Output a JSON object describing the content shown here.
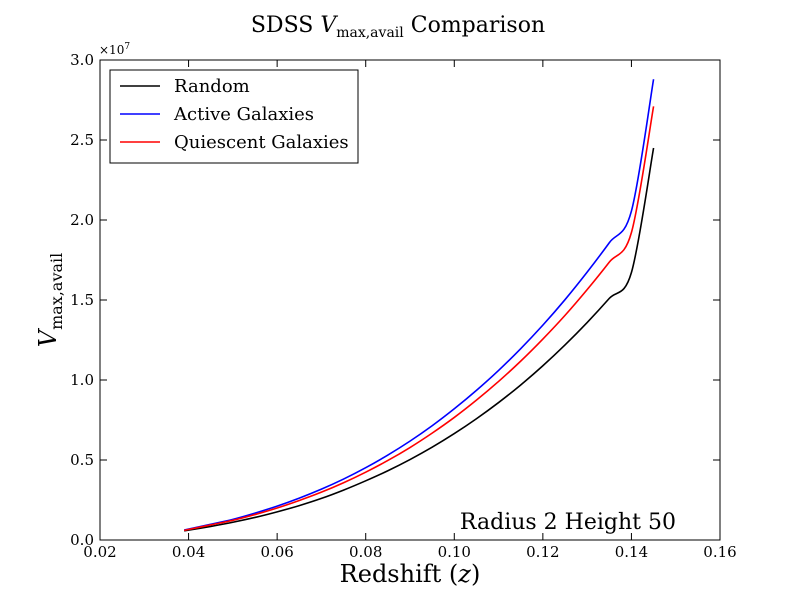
{
  "chart_data": {
    "type": "line",
    "title": {
      "prefix": "SDSS ",
      "var": "V",
      "sub": "max,avail",
      "suffix": " Comparison"
    },
    "xlabel": {
      "text": "Redshift (",
      "var": "z",
      "close": ")"
    },
    "ylabel": {
      "var": "V",
      "sub": "max,avail"
    },
    "xlim": [
      0.02,
      0.16
    ],
    "ylim": [
      0.0,
      30000000
    ],
    "x_ticks": [
      0.02,
      0.04,
      0.06,
      0.08,
      0.1,
      0.12,
      0.14,
      0.16
    ],
    "x_tick_labels": [
      "0.02",
      "0.04",
      "0.06",
      "0.08",
      "0.10",
      "0.12",
      "0.14",
      "0.16"
    ],
    "y_ticks": [
      0,
      5000000,
      10000000,
      15000000,
      20000000,
      25000000,
      30000000
    ],
    "y_tick_labels": [
      "0.0",
      "0.5",
      "1.0",
      "1.5",
      "2.0",
      "2.5",
      "3.0"
    ],
    "y_offset_label": {
      "base": "×10",
      "exp": "7"
    },
    "grid": false,
    "legend_position": "top-left",
    "annotation": "Radius 2 Height 50",
    "x": [
      0.039,
      0.045,
      0.05,
      0.055,
      0.06,
      0.065,
      0.07,
      0.075,
      0.08,
      0.085,
      0.09,
      0.095,
      0.1,
      0.105,
      0.11,
      0.115,
      0.12,
      0.125,
      0.13,
      0.135,
      0.14,
      0.145
    ],
    "series": [
      {
        "name": "Random",
        "color": "#000000",
        "values": [
          570000,
          850000,
          1110000,
          1410000,
          1760000,
          2150000,
          2600000,
          3120000,
          3700000,
          4330000,
          5030000,
          5800000,
          6650000,
          7580000,
          8590000,
          9690000,
          10890000,
          12190000,
          13590000,
          15100000,
          16720000,
          24500000
        ]
      },
      {
        "name": "Active Galaxies",
        "color": "#0000ff",
        "values": [
          620000,
          980000,
          1290000,
          1680000,
          2120000,
          2620000,
          3180000,
          3810000,
          4520000,
          5310000,
          6180000,
          7140000,
          8200000,
          9350000,
          10600000,
          11960000,
          13430000,
          15020000,
          16740000,
          18580000,
          20560000,
          28800000
        ]
      },
      {
        "name": "Quiescent Galaxies",
        "color": "#ff0000",
        "values": [
          600000,
          940000,
          1230000,
          1590000,
          2000000,
          2470000,
          2990000,
          3580000,
          4240000,
          4970000,
          5780000,
          6680000,
          7660000,
          8740000,
          9910000,
          11180000,
          12560000,
          14040000,
          15650000,
          17370000,
          19220000,
          27100000
        ]
      }
    ]
  }
}
